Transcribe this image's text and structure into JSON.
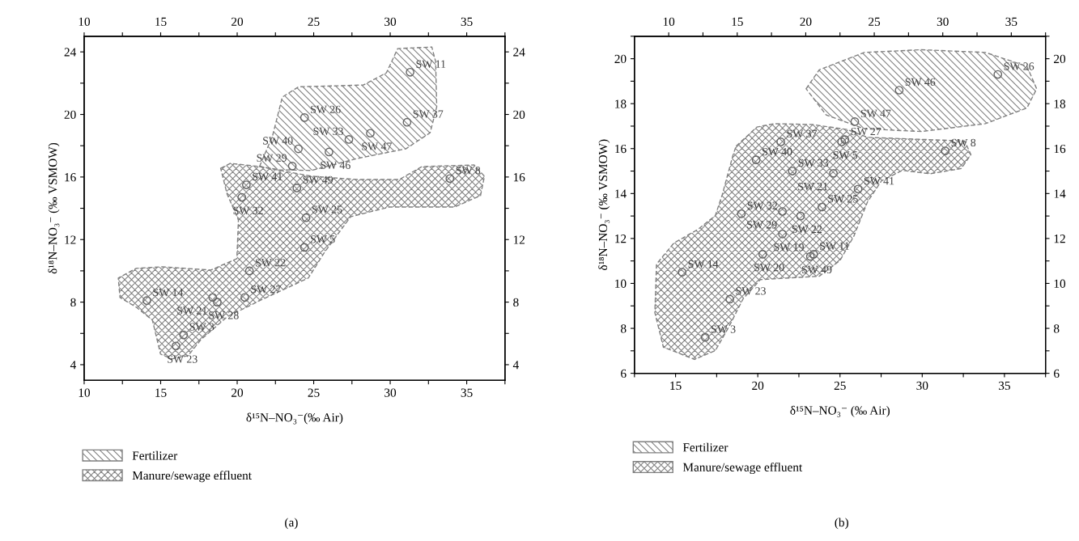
{
  "chart_data": [
    {
      "type": "scatter",
      "xlabel": "δ¹⁵N–NO₃⁻(‰ Air)",
      "ylabel": "δ¹⁸N–NO₃⁻ (‰ VSMOW)",
      "xlim": [
        10,
        37.5
      ],
      "xticks": [
        10,
        {
          "value": 12.5,
          "label": null
        },
        15,
        {
          "value": 17.5,
          "label": null
        },
        20,
        {
          "value": 22.5,
          "label": null
        },
        25,
        {
          "value": 27.5,
          "label": null
        },
        30,
        {
          "value": 32.5,
          "label": null
        },
        35,
        {
          "value": 37.5,
          "label": null
        }
      ],
      "x2lim": [
        10,
        37.5
      ],
      "x2ticks": [
        10,
        {
          "value": 12.5,
          "label": null
        },
        15,
        {
          "value": 17.5,
          "label": null
        },
        20,
        {
          "value": 22.5,
          "label": null
        },
        25,
        {
          "value": 27.5,
          "label": null
        },
        30,
        {
          "value": 32.5,
          "label": null
        },
        35,
        {
          "value": 37.5,
          "label": null
        }
      ],
      "ylim": [
        3,
        25
      ],
      "yticks": [
        4,
        {
          "value": 6,
          "label": null
        },
        8,
        {
          "value": 10,
          "label": null
        },
        12,
        {
          "value": 14,
          "label": null
        },
        16,
        {
          "value": 18,
          "label": null
        },
        20,
        {
          "value": 22,
          "label": null
        },
        24
      ],
      "y2lim": [
        3,
        25
      ],
      "y2ticks": [
        4,
        {
          "value": 6,
          "label": null
        },
        8,
        {
          "value": 10,
          "label": null
        },
        12,
        {
          "value": 14,
          "label": null
        },
        16,
        {
          "value": 18,
          "label": null
        },
        20,
        {
          "value": 22,
          "label": null
        },
        24
      ],
      "grid": false,
      "legend": "bottom",
      "series": [
        {
          "type": "area",
          "name": "Fertilizer",
          "color": "#808080",
          "line_style": "dashed",
          "x": [
            21.46,
            22.31,
            22.95,
            24.01,
            26.56,
            28.26,
            29.75,
            30.49,
            32.72,
            32.97,
            33.04,
            32.61,
            31.02,
            27.83,
            24.86,
            22.74
          ],
          "values": [
            16.67,
            18.63,
            21.11,
            21.77,
            21.83,
            21.89,
            22.66,
            24.21,
            24.31,
            23.38,
            20.49,
            18.83,
            17.8,
            17.18,
            16.42,
            16.46
          ]
        },
        {
          "type": "area",
          "name": "Manure/sewage effluent",
          "color": "#808080",
          "line_style": "dashed",
          "x": [
            18.92,
            19.55,
            21.46,
            24.86,
            27.83,
            30.59,
            32.08,
            35.48,
            36.16,
            35.9,
            34.2,
            29.96,
            27.41,
            25.71,
            24.65,
            21.46,
            19.34,
            17.64,
            16.79,
            15.73,
            14.99,
            14.46,
            13.4,
            12.34,
            12.23,
            13.4,
            15.1,
            18.28,
            19.98,
            20.08,
            19.34
          ],
          "values": [
            16.56,
            16.87,
            16.67,
            16.05,
            15.84,
            15.84,
            16.67,
            16.77,
            16.05,
            14.81,
            14.08,
            14.08,
            13.46,
            11.19,
            9.54,
            8.09,
            7.06,
            5.61,
            4.58,
            4.37,
            4.68,
            6.85,
            7.68,
            8.3,
            9.54,
            10.16,
            10.26,
            10.05,
            10.78,
            13.26,
            14.91
          ]
        },
        {
          "type": "scatter",
          "color": "#666666",
          "marker": "circle",
          "x": [
            31.3,
            24.4,
            31.1,
            28.7,
            27.3,
            26.0,
            24.0,
            23.6,
            20.6,
            20.3,
            23.9,
            33.9,
            24.5,
            24.4,
            20.8,
            14.1,
            18.4,
            18.7,
            20.5,
            16.5,
            16.0
          ],
          "values": [
            22.7,
            19.8,
            19.5,
            18.8,
            18.4,
            17.6,
            17.8,
            16.7,
            15.5,
            14.7,
            15.3,
            15.9,
            13.4,
            11.5,
            10.0,
            8.1,
            8.3,
            8.0,
            8.3,
            5.9,
            5.2
          ]
        }
      ],
      "annotations": [
        {
          "text": "SW 11",
          "x": 31.3,
          "y": 22.7
        },
        {
          "text": "SW 26",
          "x": 24.4,
          "y": 19.8
        },
        {
          "text": "SW 37",
          "x": 31.1,
          "y": 19.5
        },
        {
          "text": "SW 47",
          "x": 28.7,
          "y": 18.8
        },
        {
          "text": "SW 33",
          "x": 27.3,
          "y": 18.4
        },
        {
          "text": "SW 46",
          "x": 26.0,
          "y": 17.6
        },
        {
          "text": "SW 40",
          "x": 24.0,
          "y": 17.8
        },
        {
          "text": "SW 29",
          "x": 23.6,
          "y": 16.7
        },
        {
          "text": "SW 41",
          "x": 20.6,
          "y": 15.5
        },
        {
          "text": "SW 32",
          "x": 20.3,
          "y": 14.7
        },
        {
          "text": "SW 49",
          "x": 23.9,
          "y": 15.3
        },
        {
          "text": "SW 8",
          "x": 33.9,
          "y": 15.9
        },
        {
          "text": "SW 25",
          "x": 24.5,
          "y": 13.4
        },
        {
          "text": "SW 5",
          "x": 24.4,
          "y": 11.5
        },
        {
          "text": "SW 22",
          "x": 20.8,
          "y": 10.0
        },
        {
          "text": "SW 14",
          "x": 14.1,
          "y": 8.1
        },
        {
          "text": "SW 21",
          "x": 18.4,
          "y": 8.3
        },
        {
          "text": "SW 28",
          "x": 18.7,
          "y": 8.0
        },
        {
          "text": "SW 27",
          "x": 20.5,
          "y": 8.3
        },
        {
          "text": "SW 3",
          "x": 16.5,
          "y": 5.9
        },
        {
          "text": "SW 23",
          "x": 16.0,
          "y": 5.2
        },
        "(a)"
      ]
    },
    {
      "type": "scatter",
      "xlabel": "δ¹⁵N–NO₃⁻ (‰ Air)",
      "ylabel": "δ¹⁸N–NO₃⁻ (‰ VSMOW)",
      "xlim": [
        12.5,
        37.5
      ],
      "xticks": [
        {
          "value": 12.5,
          "label": null
        },
        15,
        {
          "value": 17.5,
          "label": null
        },
        20,
        {
          "value": 22.5,
          "label": null
        },
        25,
        {
          "value": 27.5,
          "label": null
        },
        30,
        {
          "value": 32.5,
          "label": null
        },
        35,
        {
          "value": 37.5,
          "label": null
        }
      ],
      "x2lim": [
        7.5,
        37.5
      ],
      "x2ticks": [
        10,
        {
          "value": 12.5,
          "label": null
        },
        15,
        {
          "value": 17.5,
          "label": null
        },
        20,
        {
          "value": 22.5,
          "label": null
        },
        25,
        {
          "value": 27.5,
          "label": null
        },
        30,
        {
          "value": 32.5,
          "label": null
        },
        35,
        {
          "value": 37.5,
          "label": null
        }
      ],
      "ylim": [
        6,
        21
      ],
      "yticks": [
        6,
        {
          "value": 7,
          "label": null
        },
        8,
        {
          "value": 9,
          "label": null
        },
        10,
        {
          "value": 11,
          "label": null
        },
        12,
        {
          "value": 13,
          "label": null
        },
        14,
        {
          "value": 15,
          "label": null
        },
        16,
        {
          "value": 17,
          "label": null
        },
        18,
        {
          "value": 19,
          "label": null
        },
        20,
        {
          "value": 21,
          "label": null
        }
      ],
      "y2lim": [
        6,
        21
      ],
      "y2ticks": [
        6,
        {
          "value": 7,
          "label": null
        },
        8,
        {
          "value": 9,
          "label": null
        },
        10,
        {
          "value": 11,
          "label": null
        },
        12,
        {
          "value": 13,
          "label": null
        },
        14,
        {
          "value": 15,
          "label": null
        },
        16,
        {
          "value": 17,
          "label": null
        },
        18,
        {
          "value": 19,
          "label": null
        },
        20,
        {
          "value": 21,
          "label": null
        }
      ],
      "grid": false,
      "legend": "bottom",
      "series": [
        {
          "type": "area",
          "name": "Fertilizer",
          "color": "#808080",
          "line_style": "dashed",
          "x": [
            22.94,
            23.74,
            26.47,
            29.95,
            33.84,
            36.37,
            36.96,
            36.37,
            33.84,
            29.95,
            26.47,
            24.16
          ],
          "values": [
            18.66,
            19.51,
            20.28,
            20.4,
            20.28,
            19.66,
            18.66,
            17.81,
            17.11,
            16.76,
            16.88,
            17.5
          ]
        },
        {
          "type": "area",
          "name": "Manure/sewage effluent",
          "color": "#808080",
          "line_style": "dashed",
          "x": [
            18.68,
            19.95,
            21.0,
            23.32,
            25.42,
            26.68,
            29.63,
            32.58,
            32.96,
            32.37,
            30.47,
            28.79,
            27.53,
            26.68,
            25.84,
            25.0,
            23.74,
            20.16,
            19.11,
            18.26,
            17.42,
            16.16,
            14.26,
            13.74,
            13.84,
            14.89,
            16.37,
            17.42,
            17.84,
            18.47
          ],
          "values": [
            16.11,
            16.96,
            17.11,
            17.07,
            16.85,
            16.5,
            16.42,
            16.34,
            15.73,
            15.11,
            14.88,
            15.03,
            14.57,
            13.64,
            12.1,
            11.02,
            10.32,
            10.17,
            9.32,
            8.09,
            7.01,
            6.62,
            7.16,
            8.7,
            10.86,
            11.79,
            12.41,
            13.02,
            13.95,
            15.65
          ]
        },
        {
          "type": "scatter",
          "color": "#666666",
          "marker": "circle",
          "x": [
            34.6,
            28.6,
            25.9,
            21.4,
            25.1,
            25.3,
            31.4,
            19.9,
            22.1,
            24.6,
            26.1,
            19.0,
            21.5,
            22.6,
            23.9,
            21.5,
            20.3,
            23.2,
            23.4,
            15.4,
            18.3,
            16.8
          ],
          "values": [
            19.3,
            18.6,
            17.2,
            16.3,
            16.3,
            16.4,
            15.9,
            15.5,
            15.0,
            14.9,
            14.2,
            13.1,
            13.2,
            13.0,
            13.4,
            12.2,
            11.3,
            11.2,
            11.3,
            10.5,
            9.3,
            7.6
          ]
        }
      ],
      "annotations": [
        {
          "text": "SW 26",
          "x": 34.6,
          "y": 19.3
        },
        {
          "text": "SW 46",
          "x": 28.6,
          "y": 18.6
        },
        {
          "text": "SW 47",
          "x": 25.9,
          "y": 17.2
        },
        {
          "text": "SW 37",
          "x": 21.4,
          "y": 16.3
        },
        {
          "text": "SW 5",
          "x": 25.1,
          "y": 16.3
        },
        {
          "text": "SW 27",
          "x": 25.3,
          "y": 16.4
        },
        {
          "text": "SW 8",
          "x": 31.4,
          "y": 15.9
        },
        {
          "text": "SW 40",
          "x": 19.9,
          "y": 15.5
        },
        {
          "text": "SW 33",
          "x": 22.1,
          "y": 15.0
        },
        {
          "text": "SW 21",
          "x": 24.6,
          "y": 14.9
        },
        {
          "text": "SW 41",
          "x": 26.1,
          "y": 14.2
        },
        {
          "text": "SW 32",
          "x": 19.0,
          "y": 13.1
        },
        {
          "text": "SW 29",
          "x": 21.5,
          "y": 13.2
        },
        {
          "text": "SW 22",
          "x": 22.6,
          "y": 13.0
        },
        {
          "text": "SW 25",
          "x": 23.9,
          "y": 13.4
        },
        {
          "text": "SW 19",
          "x": 21.5,
          "y": 12.2
        },
        {
          "text": "SW 20",
          "x": 20.3,
          "y": 11.3
        },
        {
          "text": "SW 49",
          "x": 23.2,
          "y": 11.2
        },
        {
          "text": "SW 11",
          "x": 23.4,
          "y": 11.3
        },
        {
          "text": "SW 14",
          "x": 15.4,
          "y": 10.5
        },
        {
          "text": "SW 23",
          "x": 18.3,
          "y": 9.3
        },
        {
          "text": "SW 3",
          "x": 16.8,
          "y": 7.6
        },
        "(b)"
      ]
    }
  ]
}
